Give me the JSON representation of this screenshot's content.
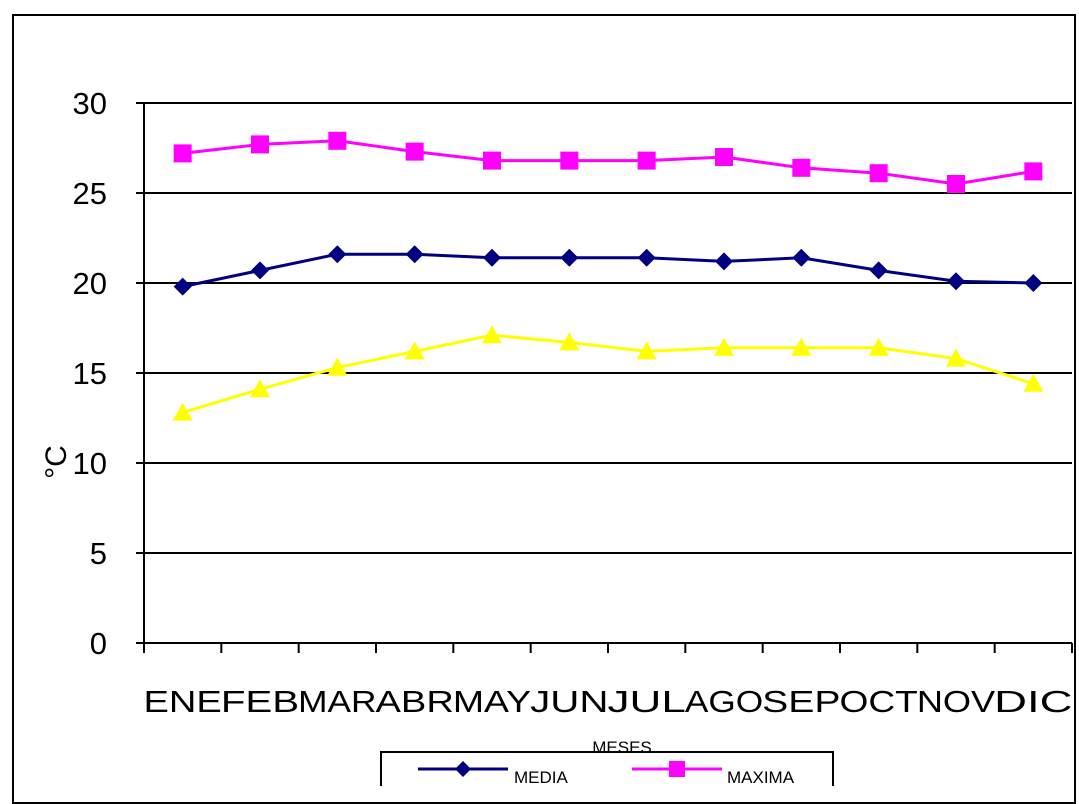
{
  "chart_data": {
    "type": "line",
    "categories": [
      "ENE",
      "FEB",
      "MAR",
      "ABR",
      "MAY",
      "JUN",
      "JUL",
      "AGO",
      "SEP",
      "OCT",
      "NOV",
      "DIC"
    ],
    "ylabel": "°C",
    "xlabel": "MESES",
    "ylim": [
      0,
      30
    ],
    "yticks": [
      0,
      5,
      10,
      15,
      20,
      25,
      30
    ],
    "grid": true,
    "legend_position": "bottom",
    "series": [
      {
        "name": "MEDIA",
        "color": "#000080",
        "marker": "diamond",
        "values": [
          19.8,
          20.7,
          21.6,
          21.6,
          21.4,
          21.4,
          21.4,
          21.2,
          21.4,
          20.7,
          20.1,
          20.0
        ]
      },
      {
        "name": "MAXIMA",
        "color": "#ff00ff",
        "marker": "square",
        "values": [
          27.2,
          27.7,
          27.9,
          27.3,
          26.8,
          26.8,
          26.8,
          27.0,
          26.4,
          26.1,
          25.5,
          26.2
        ]
      },
      {
        "name": "",
        "color": "#ffff00",
        "marker": "triangle",
        "values": [
          12.8,
          14.1,
          15.3,
          16.2,
          17.1,
          16.7,
          16.2,
          16.4,
          16.4,
          16.4,
          15.8,
          14.4
        ]
      }
    ]
  }
}
